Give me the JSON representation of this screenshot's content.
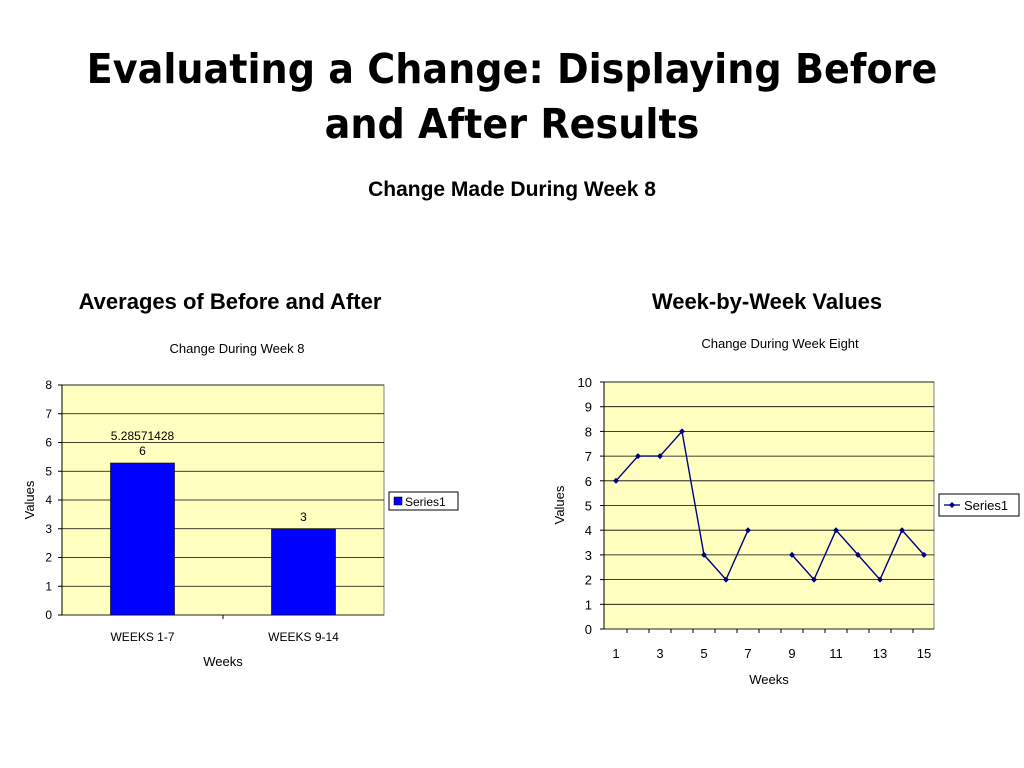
{
  "slide": {
    "title_line1": "Evaluating a Change: Displaying Before",
    "title_line2": "and After Results",
    "subtitle": "Change Made During Week 8",
    "left_heading": "Averages of Before and After",
    "right_heading": "Week-by-Week Values"
  },
  "colors": {
    "plot_bg": "#FFFFC0",
    "bar_fill": "#0000FF",
    "line_color": "#000080",
    "grid": "#000000"
  },
  "chart_data": [
    {
      "type": "bar",
      "title": "Change During Week 8",
      "xlabel": "Weeks",
      "ylabel": "Values",
      "categories": [
        "WEEKS 1-7",
        "WEEKS 9-14"
      ],
      "series": [
        {
          "name": "Series1",
          "values": [
            5.285714286,
            3
          ],
          "labels": [
            "5.28571428\n6",
            "3"
          ]
        }
      ],
      "ylim": [
        0,
        8
      ],
      "yticks": [
        0,
        1,
        2,
        3,
        4,
        5,
        6,
        7,
        8
      ],
      "grid": true,
      "legend": "right"
    },
    {
      "type": "line",
      "title": "Change During Week Eight",
      "xlabel": "Weeks",
      "ylabel": "Values",
      "x": [
        1,
        2,
        3,
        4,
        5,
        6,
        7,
        8,
        9,
        10,
        11,
        12,
        13,
        14,
        15
      ],
      "series": [
        {
          "name": "Series1",
          "values": [
            6,
            7,
            7,
            8,
            3,
            2,
            4,
            null,
            3,
            2,
            4,
            3,
            2,
            4,
            3
          ]
        }
      ],
      "xticks": [
        1,
        3,
        5,
        7,
        9,
        11,
        13,
        15
      ],
      "ylim": [
        0,
        10
      ],
      "yticks": [
        0,
        1,
        2,
        3,
        4,
        5,
        6,
        7,
        8,
        9,
        10
      ],
      "grid": true,
      "legend": "right"
    }
  ]
}
